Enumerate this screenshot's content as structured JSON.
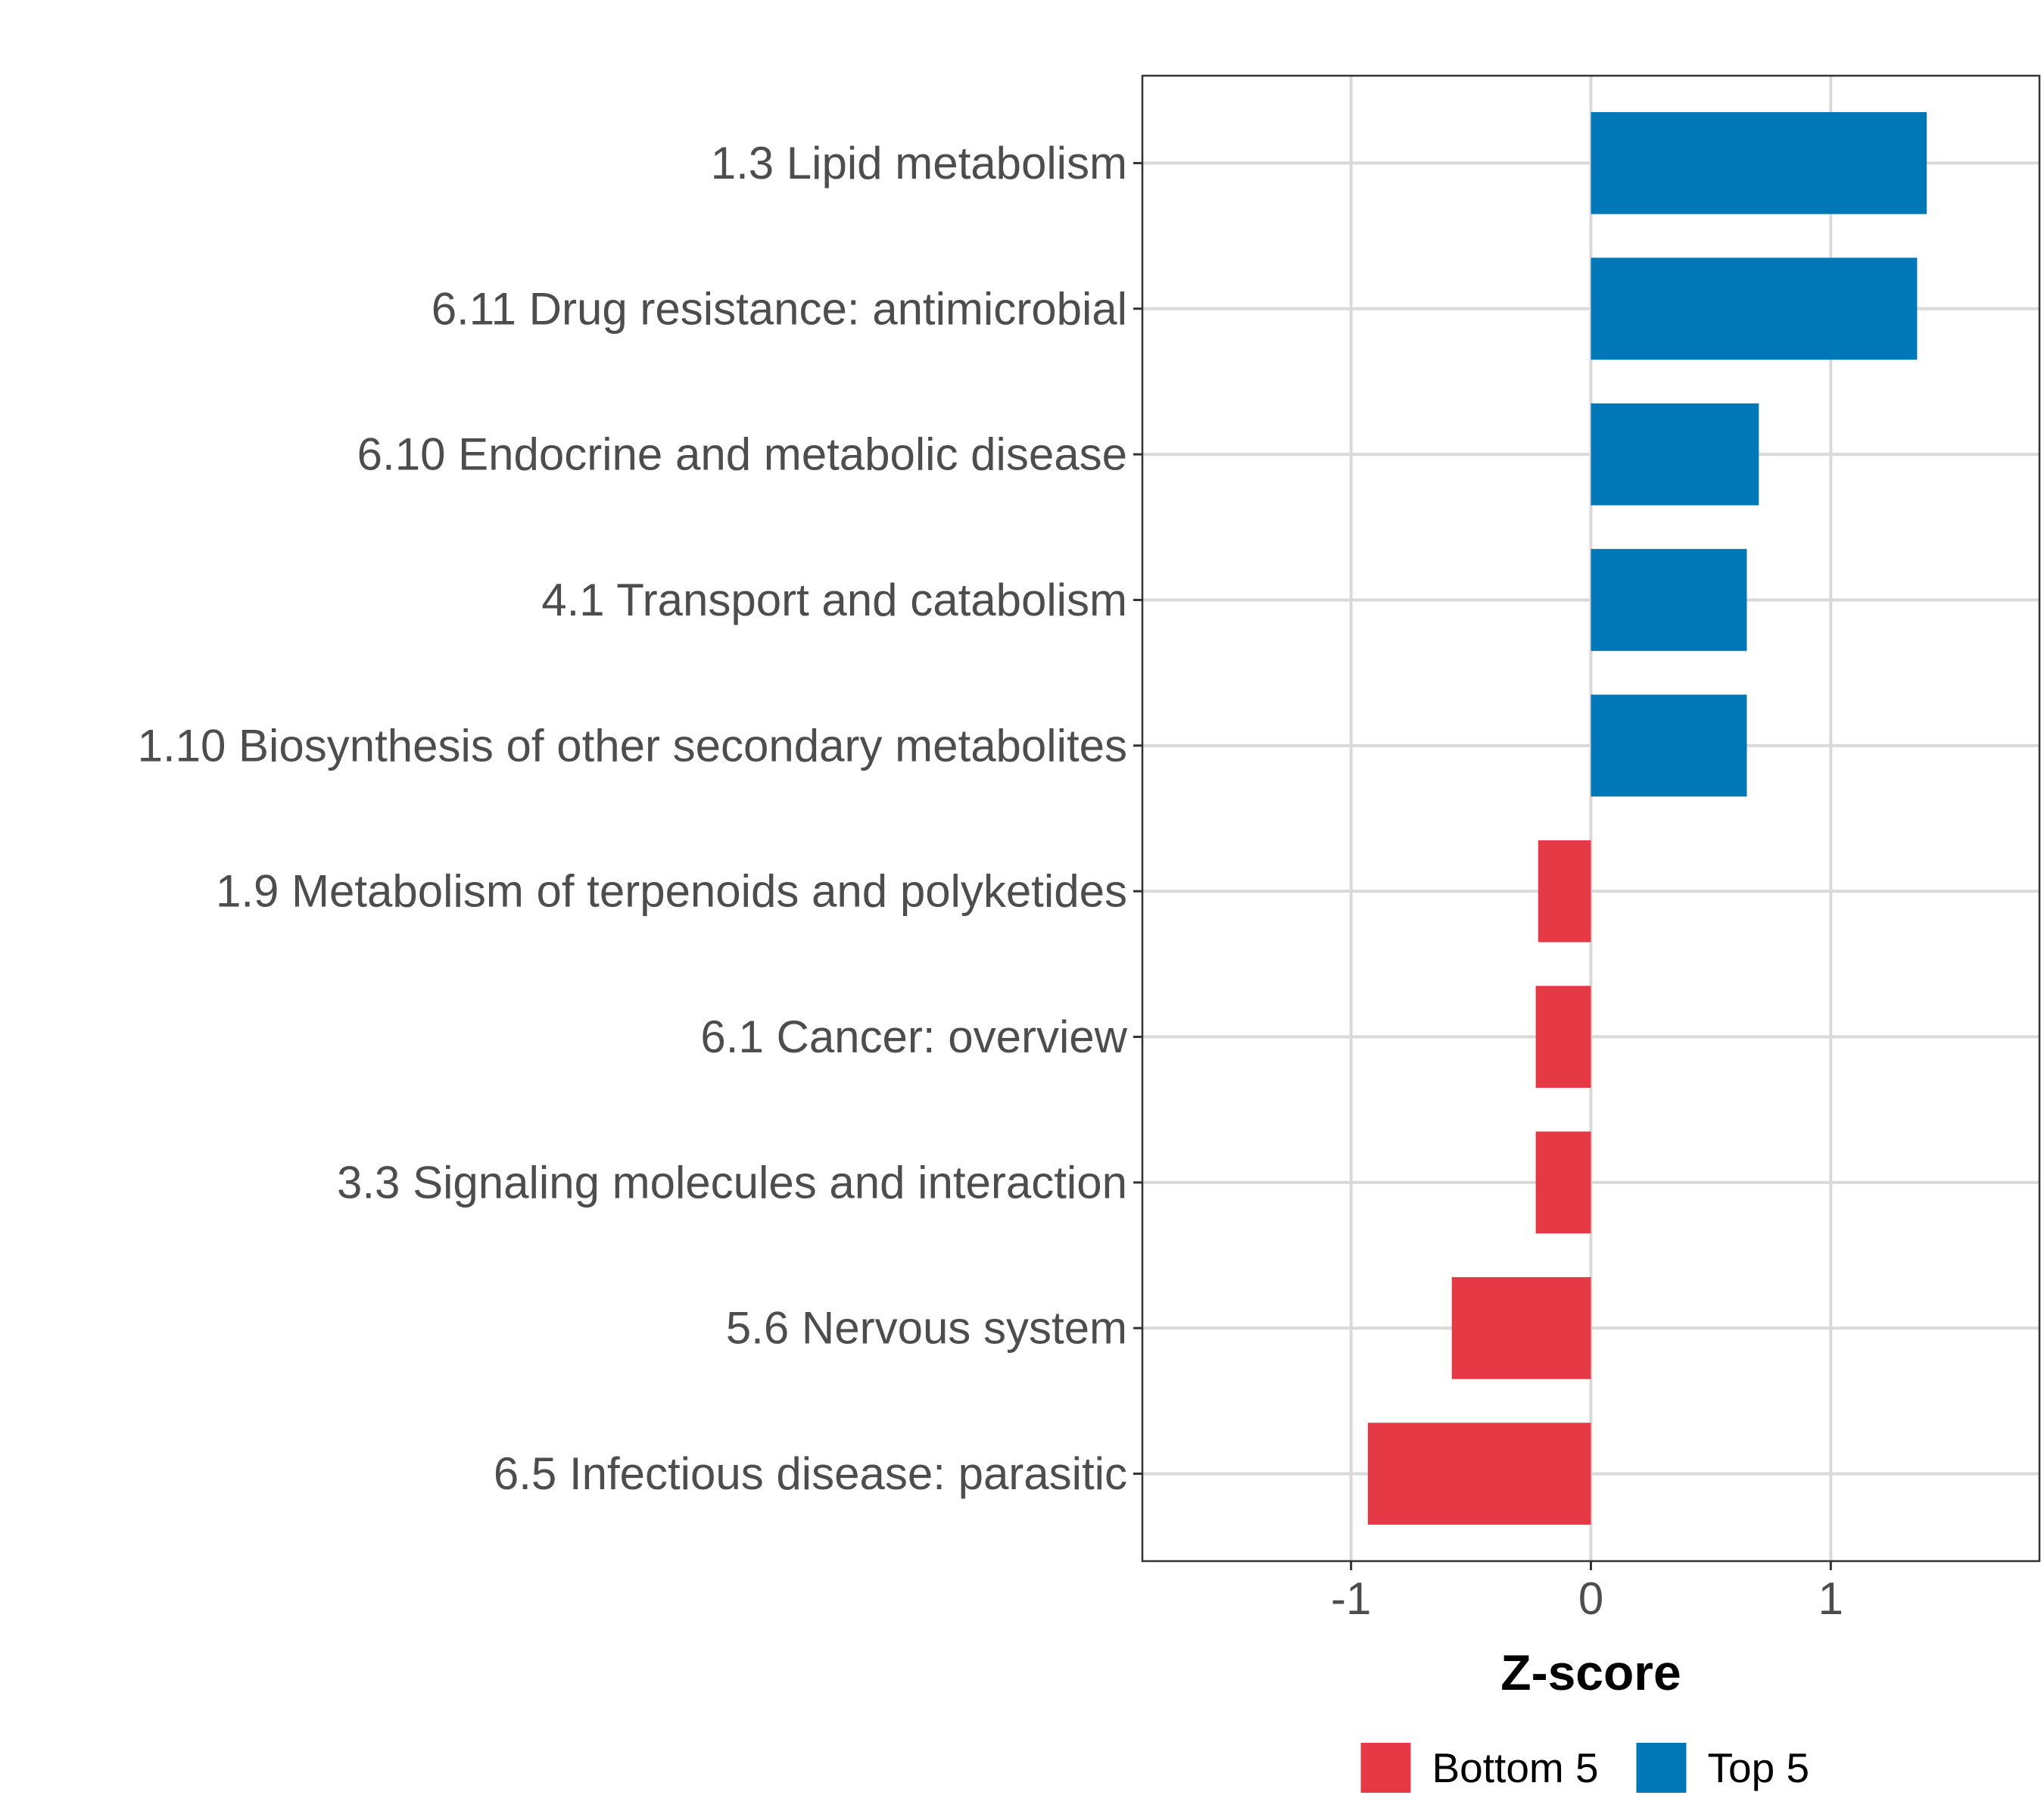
{
  "chart_data": {
    "type": "bar",
    "orientation": "horizontal",
    "categories": [
      "1.3 Lipid metabolism",
      "6.11 Drug resistance: antimicrobial",
      "6.10 Endocrine and metabolic disease",
      "4.1 Transport and catabolism",
      "1.10 Biosynthesis of other secondary metabolites",
      "1.9 Metabolism of terpenoids and polyketides",
      "6.1 Cancer: overview",
      "3.3 Signaling molecules and interaction",
      "5.6 Nervous system",
      "6.5 Infectious disease: parasitic"
    ],
    "values": [
      1.4,
      1.36,
      0.7,
      0.65,
      0.65,
      -0.22,
      -0.23,
      -0.23,
      -0.58,
      -0.93
    ],
    "groups": [
      "Top 5",
      "Top 5",
      "Top 5",
      "Top 5",
      "Top 5",
      "Bottom 5",
      "Bottom 5",
      "Bottom 5",
      "Bottom 5",
      "Bottom 5"
    ],
    "title": "",
    "xlabel": "Z-score",
    "ylabel": "",
    "xlim": [
      -1.87,
      1.87
    ],
    "xticks": [
      -1,
      0,
      1
    ],
    "xtick_labels": [
      "-1",
      "0",
      "1"
    ],
    "grid": true,
    "legend": {
      "position": "bottom",
      "entries": [
        {
          "label": "Bottom 5",
          "color": "#e63946"
        },
        {
          "label": "Top 5",
          "color": "#0077b6"
        }
      ]
    },
    "colors": {
      "Bottom 5": "#e63946",
      "Top 5": "#0077b6"
    }
  }
}
